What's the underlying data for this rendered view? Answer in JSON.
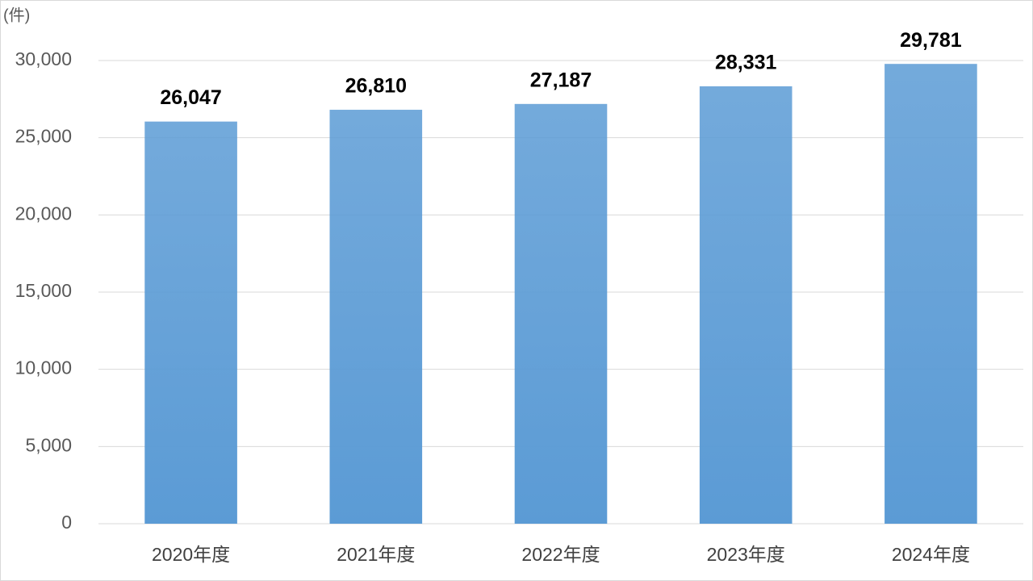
{
  "chart_data": {
    "type": "bar",
    "unit_label": "(件)",
    "categories": [
      "2020年度",
      "2021年度",
      "2022年度",
      "2023年度",
      "2024年度"
    ],
    "values": [
      26047,
      26810,
      27187,
      28331,
      29781
    ],
    "value_labels": [
      "26,047",
      "26,810",
      "27,187",
      "28,331",
      "29,781"
    ],
    "color": "#5b9bd5",
    "ylim": [
      0,
      30000
    ],
    "yticks": [
      0,
      {
        "value": 5000,
        "label": "5,000"
      },
      {
        "value": 10000,
        "label": "10,000"
      },
      {
        "value": 15000,
        "label": "15,000"
      },
      {
        "value": 20000,
        "label": "20,000"
      },
      {
        "value": 25000,
        "label": "25,000"
      },
      {
        "value": 30000,
        "label": "30,000"
      }
    ],
    "grid": true
  }
}
